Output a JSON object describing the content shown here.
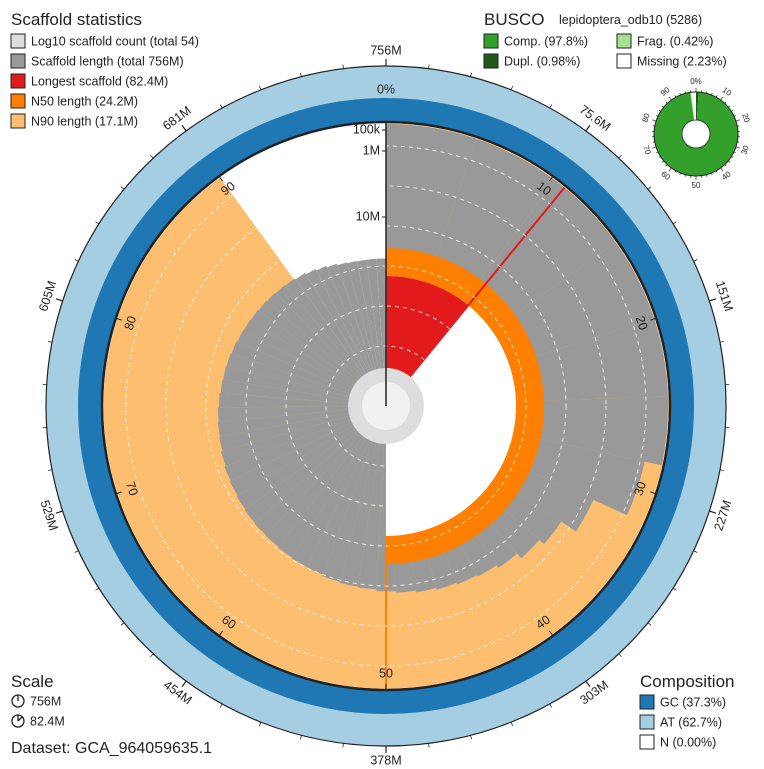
{
  "chart_data": {
    "type": "snail",
    "scaffold_statistics": {
      "title": "Scaffold statistics",
      "legend": [
        {
          "label": "Log10 scaffold count (total 54)",
          "color": "#dddddd"
        },
        {
          "label": "Scaffold length (total 756M)",
          "color": "#999999"
        },
        {
          "label": "Longest scaffold (82.4M)",
          "color": "#e31a1c"
        },
        {
          "label": "N50 length (24.2M)",
          "color": "#ff7f00"
        },
        {
          "label": "N90 length (17.1M)",
          "color": "#fdbf6f"
        }
      ],
      "total_count": 54,
      "total_length_mb": 756,
      "longest_scaffold_mb": 82.4,
      "n50_mb": 24.2,
      "n90_mb": 17.1
    },
    "busco": {
      "title": "BUSCO",
      "lineage": "lepidoptera_odb10 (5286)",
      "legend": [
        {
          "label": "Comp. (97.8%)",
          "color": "#33a02c",
          "value": 97.8
        },
        {
          "label": "Frag. (0.42%)",
          "color": "#a3e08f",
          "value": 0.42
        },
        {
          "label": "Dupl. (0.98%)",
          "color": "#20591a",
          "value": 0.98
        },
        {
          "label": "Missing (2.23%)",
          "color": "#ffffff",
          "value": 2.23
        }
      ],
      "ticks": [
        "0%",
        "10",
        "20",
        "30",
        "40",
        "50",
        "60",
        "70",
        "80",
        "90"
      ]
    },
    "composition": {
      "title": "Composition",
      "legend": [
        {
          "label": "GC (37.3%)",
          "color": "#1f78b4",
          "value": 37.3
        },
        {
          "label": "AT (62.7%)",
          "color": "#a6cee3",
          "value": 62.7
        },
        {
          "label": "N (0.00%)",
          "color": "#ffffff",
          "value": 0.0
        }
      ]
    },
    "scale": {
      "title": "Scale",
      "items": [
        "756M",
        "82.4M"
      ]
    },
    "dataset": "Dataset: GCA_964059635.1",
    "outer_ticks": [
      "756M",
      "75.6M",
      "151M",
      "227M",
      "303M",
      "378M",
      "454M",
      "529M",
      "605M",
      "681M"
    ],
    "percent_ticks": [
      "0%",
      "10",
      "20",
      "30",
      "40",
      "50",
      "60",
      "70",
      "80",
      "90"
    ],
    "radial_labels": [
      "100k",
      "1M",
      "10M"
    ],
    "scaffold_length_profile_mb": [
      82.4,
      80,
      78,
      76,
      72,
      62,
      54,
      40,
      34,
      32,
      30,
      29,
      28.5,
      28,
      27.5,
      27,
      26.5,
      26,
      25.8,
      25.5,
      25,
      24.8,
      24.5,
      24.2,
      24,
      23.8,
      23.5,
      23.2,
      23,
      22.6,
      22.2,
      22,
      21.8,
      21.5,
      21.2,
      21,
      20.8,
      20.5,
      20.2,
      20,
      19.8,
      19.6,
      19.4,
      19.2,
      19,
      18.7,
      18.3,
      17.9,
      17.5,
      17.1,
      16.9,
      16.8,
      16.8,
      16.8
    ],
    "log_count_profile": [
      0,
      0.28,
      0.45,
      0.6,
      0.7,
      0.78,
      0.85,
      0.9,
      0.95,
      1.0,
      1.05,
      1.1,
      1.15,
      1.2,
      1.25,
      1.3,
      1.35,
      1.4,
      1.45,
      1.5,
      1.55,
      1.6,
      1.65,
      1.7,
      1.73,
      1.73
    ]
  }
}
